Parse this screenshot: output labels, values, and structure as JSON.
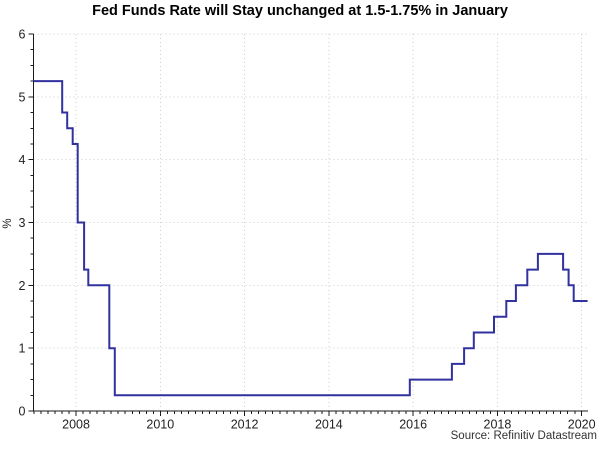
{
  "title": "Fed Funds Rate will Stay unchanged at 1.5-1.75% in January",
  "source": "Source: Refinitiv Datastream",
  "colors": {
    "line": "#31319f",
    "axis": "#1a1a1a",
    "grid": "#ccd1c9",
    "tick_label": "#222222",
    "title_text": "#000000",
    "source_text": "#333333"
  },
  "chart_data": {
    "type": "line",
    "line_style": "step-after",
    "title": "Fed Funds Rate will Stay unchanged at 1.5-1.75% in January",
    "xlabel": "",
    "ylabel": "%",
    "xlim": [
      2006.99,
      2020.15
    ],
    "ylim": [
      0,
      6
    ],
    "grid": "dotted, vertical at even years, horizontal at integer percents",
    "legend": "none",
    "x_major_ticks": [
      2008,
      2010,
      2012,
      2014,
      2016,
      2018,
      2020
    ],
    "x_tick_labels": [
      "2008",
      "2010",
      "2012",
      "2014",
      "2016",
      "2018",
      "2020"
    ],
    "x_minor_step": 0.1667,
    "y_major_ticks": [
      0,
      1,
      2,
      3,
      4,
      5,
      6
    ],
    "y_tick_labels": [
      "0",
      "1",
      "2",
      "3",
      "4",
      "5",
      "6"
    ],
    "y_minor_step": 0.25,
    "y_gridline_values": [
      1,
      2,
      3,
      4,
      5,
      6
    ],
    "series": [
      {
        "name": "fed-funds-target-rate",
        "color": "#31319f",
        "points": [
          [
            2006.99,
            5.25
          ],
          [
            2007.67,
            4.75
          ],
          [
            2007.79,
            4.5
          ],
          [
            2007.92,
            4.25
          ],
          [
            2008.04,
            3.0
          ],
          [
            2008.19,
            2.25
          ],
          [
            2008.29,
            2.0
          ],
          [
            2008.79,
            1.0
          ],
          [
            2008.92,
            0.25
          ],
          [
            2015.92,
            0.5
          ],
          [
            2016.92,
            0.75
          ],
          [
            2017.21,
            1.0
          ],
          [
            2017.44,
            1.25
          ],
          [
            2017.92,
            1.5
          ],
          [
            2018.21,
            1.75
          ],
          [
            2018.44,
            2.0
          ],
          [
            2018.71,
            2.25
          ],
          [
            2018.96,
            2.5
          ],
          [
            2019.56,
            2.25
          ],
          [
            2019.69,
            2.0
          ],
          [
            2019.81,
            1.75
          ],
          [
            2020.14,
            1.75
          ]
        ]
      }
    ],
    "source": "Source: Refinitiv Datastream"
  }
}
